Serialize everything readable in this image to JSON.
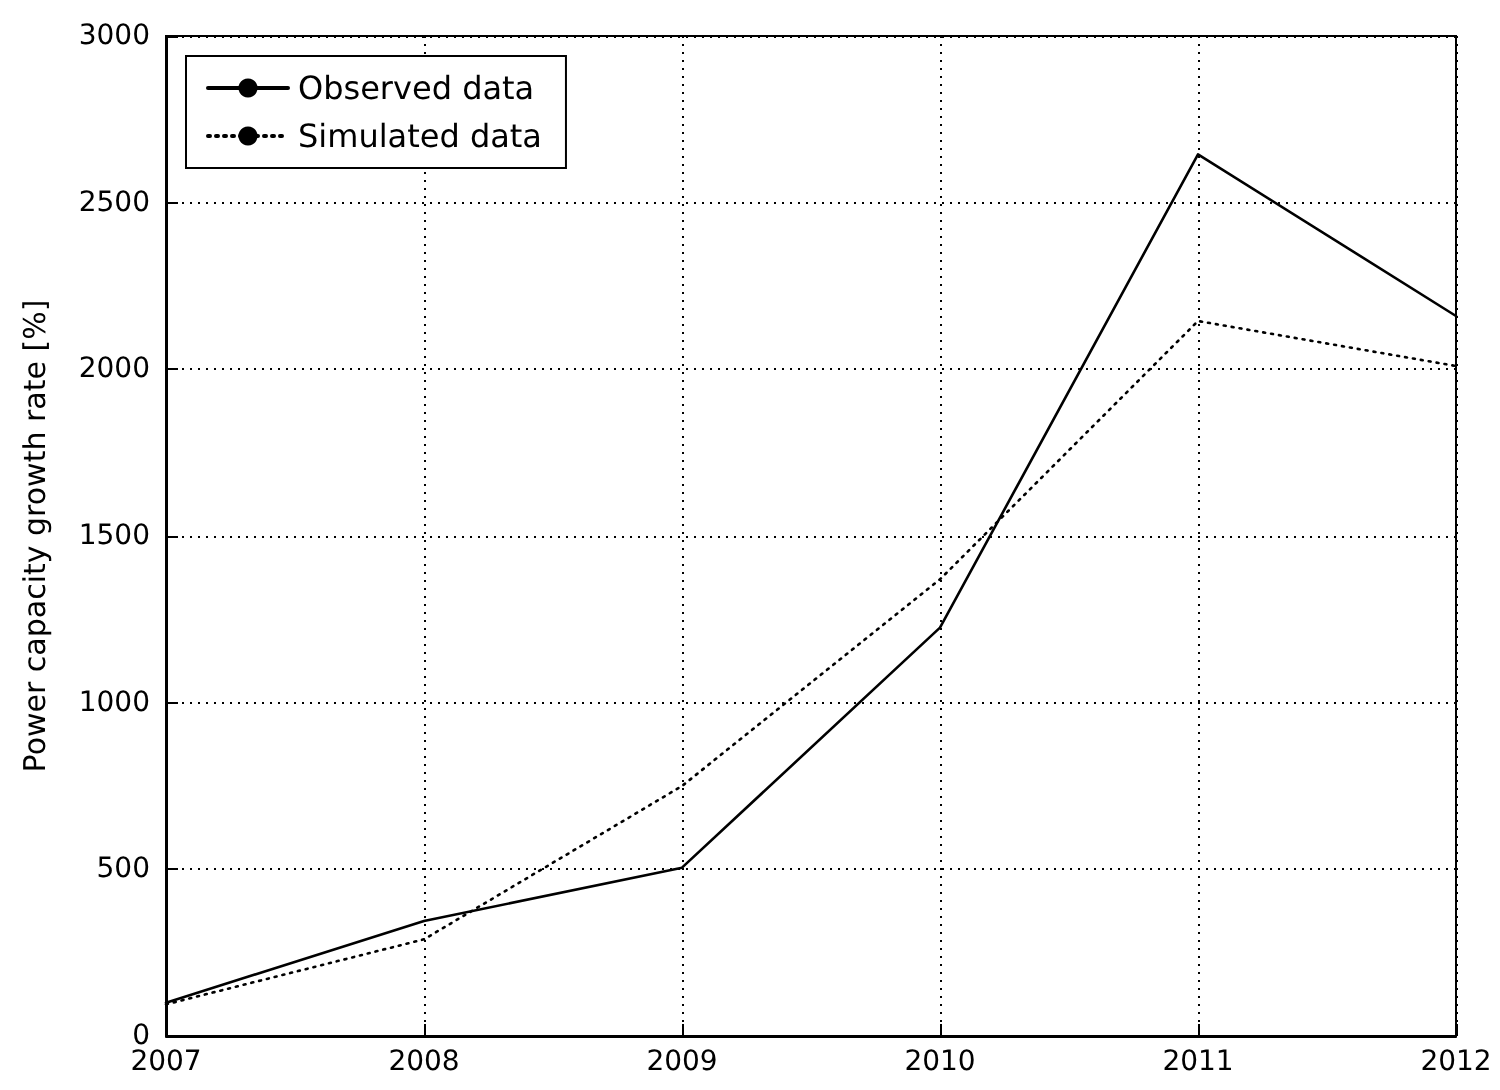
{
  "chart_data": {
    "type": "line",
    "ylabel": "Power capacity growth rate [%]",
    "x": [
      2007,
      2008,
      2009,
      2010,
      2011,
      2012
    ],
    "series": [
      {
        "name": "Observed data",
        "color": "#000000",
        "line_style": "solid",
        "values": [
          100,
          345,
          505,
          1225,
          2645,
          2160
        ]
      },
      {
        "name": "Simulated data",
        "color": "#000000",
        "line_style": "dotted",
        "values": [
          95,
          290,
          750,
          1370,
          2145,
          2010
        ]
      }
    ],
    "xlim": [
      2007,
      2012
    ],
    "xticks": [
      2007,
      2008,
      2009,
      2010,
      2011,
      2012
    ],
    "ylim": [
      0,
      3000
    ],
    "yticks": [
      0,
      500,
      1000,
      1500,
      2000,
      2500,
      3000
    ],
    "grid": true,
    "legend": "top left",
    "marker": "none"
  }
}
